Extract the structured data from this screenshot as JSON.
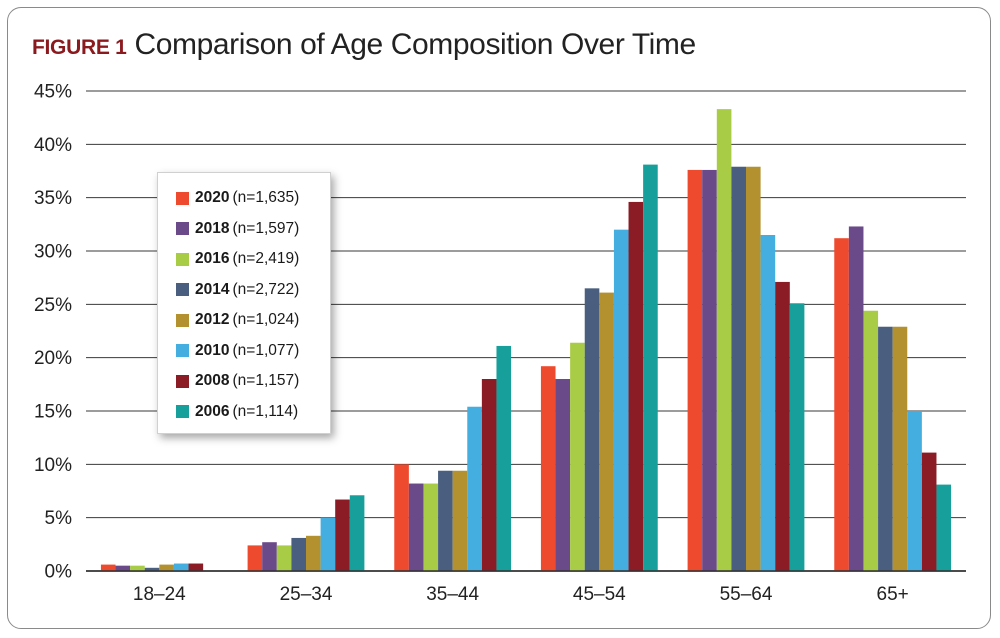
{
  "figure": {
    "label": "FIGURE 1",
    "title": "Comparison of Age Composition Over Time"
  },
  "chart_data": {
    "type": "bar",
    "title": "Comparison of Age Composition Over Time",
    "xlabel": "",
    "ylabel": "",
    "ylim": [
      0,
      45
    ],
    "y_ticks": [
      "0%",
      "5%",
      "10%",
      "15%",
      "20%",
      "25%",
      "30%",
      "35%",
      "40%",
      "45%"
    ],
    "grid": "horizontal",
    "legend_position": "top-left",
    "categories": [
      "18–24",
      "25–34",
      "35–44",
      "45–54",
      "55–64",
      "65+"
    ],
    "series": [
      {
        "name": "2020",
        "n": "(n=1,635)",
        "color": "#ee4a2e",
        "values": [
          0.6,
          2.4,
          10.0,
          19.2,
          37.6,
          31.2
        ]
      },
      {
        "name": "2018",
        "n": "(n=1,597)",
        "color": "#6b4a8a",
        "values": [
          0.5,
          2.7,
          8.2,
          18.0,
          37.6,
          32.3
        ]
      },
      {
        "name": "2016",
        "n": "(n=2,419)",
        "color": "#a8cc45",
        "values": [
          0.5,
          2.4,
          8.2,
          21.4,
          43.3,
          24.4
        ]
      },
      {
        "name": "2014",
        "n": "(n=2,722)",
        "color": "#4a5f7f",
        "values": [
          0.3,
          3.1,
          9.4,
          26.5,
          37.9,
          22.9
        ]
      },
      {
        "name": "2012",
        "n": "(n=1,024)",
        "color": "#b3912e",
        "values": [
          0.6,
          3.3,
          9.4,
          26.1,
          37.9,
          22.9
        ]
      },
      {
        "name": "2010",
        "n": "(n=1,077)",
        "color": "#45aee0",
        "values": [
          0.7,
          5.0,
          15.4,
          32.0,
          31.5,
          15.0
        ]
      },
      {
        "name": "2008",
        "n": "(n=1,157)",
        "color": "#8b1b24",
        "values": [
          0.7,
          6.7,
          18.0,
          34.6,
          27.1,
          11.1
        ]
      },
      {
        "name": "2006",
        "n": "(n=1,114)",
        "color": "#17a09b",
        "values": [
          0.0,
          7.1,
          21.1,
          38.1,
          25.1,
          8.1
        ]
      }
    ]
  }
}
